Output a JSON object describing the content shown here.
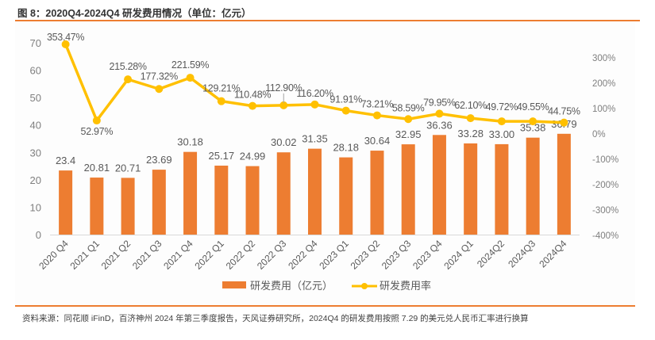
{
  "figure": {
    "title": "图 8：2020Q4-2024Q4 研发费用情况（单位：亿元）",
    "source": "资料来源：同花顺 iFinD，百济神州 2024 年第三季度报告，天风证券研究所，2024Q4 的研发费用按照 7.29 的美元兑人民币汇率进行换算"
  },
  "colors": {
    "bar": "#ED7D31",
    "line": "#FFC000",
    "rule": "#ED7D31",
    "axis_text": "#7f7f7f",
    "label_text": "#595959"
  },
  "chart_data": {
    "type": "bar+line",
    "title": "2020Q4-2024Q4 研发费用情况（单位：亿元）",
    "categories": [
      "2020 Q4",
      "2021 Q1",
      "2021 Q2",
      "2021 Q3",
      "2021 Q4",
      "2022 Q1",
      "2022 Q2",
      "2022 Q3",
      "2022 Q4",
      "2023 Q1",
      "2023 Q2",
      "2023 Q3",
      "2023 Q4",
      "2024 Q1",
      "2024Q2",
      "2024Q3",
      "2024Q4"
    ],
    "series": [
      {
        "name": "研发费用（亿元）",
        "type": "bar",
        "axis": "left",
        "values": [
          23.4,
          20.81,
          20.71,
          23.69,
          30.18,
          25.17,
          24.99,
          30.02,
          31.35,
          28.18,
          30.64,
          32.95,
          36.36,
          33.28,
          33.0,
          35.38,
          36.79
        ],
        "labels": [
          "23.4",
          "20.81",
          "20.71",
          "23.69",
          "30.18",
          "25.17",
          "24.99",
          "30.02",
          "31.35",
          "28.18",
          "30.64",
          "32.95",
          "36.36",
          "33.28",
          "33.00",
          "35.38",
          "36.79"
        ]
      },
      {
        "name": "研发费用率",
        "type": "line",
        "axis": "right",
        "values": [
          353.47,
          52.97,
          215.28,
          177.32,
          221.59,
          129.21,
          110.48,
          112.9,
          116.2,
          91.91,
          73.21,
          58.59,
          79.95,
          62.1,
          49.72,
          49.55,
          44.75
        ],
        "labels": [
          "353.47%",
          "52.97%",
          "215.28%",
          "177.32%",
          "221.59%",
          "129.21%",
          "110.48%",
          "112.90%",
          "116.20%",
          "91.91%",
          "73.21%",
          "58.59%",
          "79.95%",
          "62.10%",
          "49.72%",
          "49.55%",
          "44.75%"
        ]
      }
    ],
    "left_axis": {
      "ylim": [
        0,
        70
      ],
      "ticks": [
        "0",
        "10",
        "20",
        "30",
        "40",
        "50",
        "60",
        "70"
      ],
      "tick_values": [
        0,
        10,
        20,
        30,
        40,
        50,
        60,
        70
      ]
    },
    "right_axis": {
      "ylim": [
        -400,
        370
      ],
      "ticks": [
        "-400%",
        "-300%",
        "-200%",
        "-100%",
        "0%",
        "100%",
        "200%",
        "300%"
      ],
      "tick_values": [
        -400,
        -300,
        -200,
        -100,
        0,
        100,
        200,
        300
      ]
    },
    "xlabel": "",
    "ylabel": "",
    "grid": false,
    "legend": {
      "placement": "bottom-center",
      "entries": [
        "研发费用（亿元）",
        "研发费用率"
      ]
    }
  }
}
